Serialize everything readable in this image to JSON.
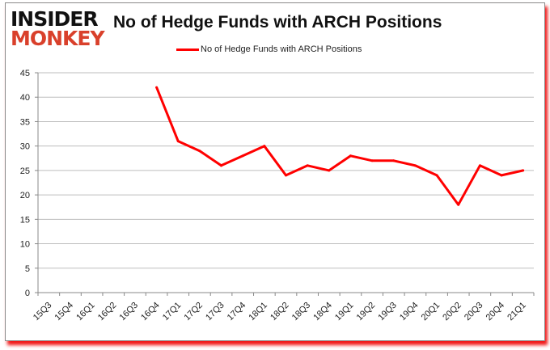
{
  "logo": {
    "line1": "INSIDER",
    "line2": "MONKEY"
  },
  "chart_data": {
    "type": "line",
    "title": "No of Hedge Funds with ARCH Positions",
    "xlabel": "",
    "ylabel": "",
    "ylim": [
      0,
      45
    ],
    "yticks": [
      0,
      5,
      10,
      15,
      20,
      25,
      30,
      35,
      40,
      45
    ],
    "grid": true,
    "legend": "top-center",
    "categories": [
      "15Q3",
      "15Q4",
      "16Q1",
      "16Q2",
      "16Q3",
      "16Q4",
      "17Q1",
      "17Q2",
      "17Q3",
      "17Q4",
      "18Q1",
      "18Q2",
      "18Q3",
      "18Q4",
      "19Q1",
      "19Q2",
      "19Q3",
      "19Q4",
      "20Q1",
      "20Q2",
      "20Q3",
      "20Q4",
      "21Q1"
    ],
    "series": [
      {
        "name": "No of Hedge Funds with ARCH Positions",
        "color": "#ff0000",
        "values": [
          null,
          null,
          null,
          null,
          null,
          42,
          31,
          29,
          26,
          28,
          30,
          24,
          26,
          25,
          28,
          27,
          27,
          26,
          24,
          18,
          26,
          24,
          25
        ]
      }
    ]
  }
}
